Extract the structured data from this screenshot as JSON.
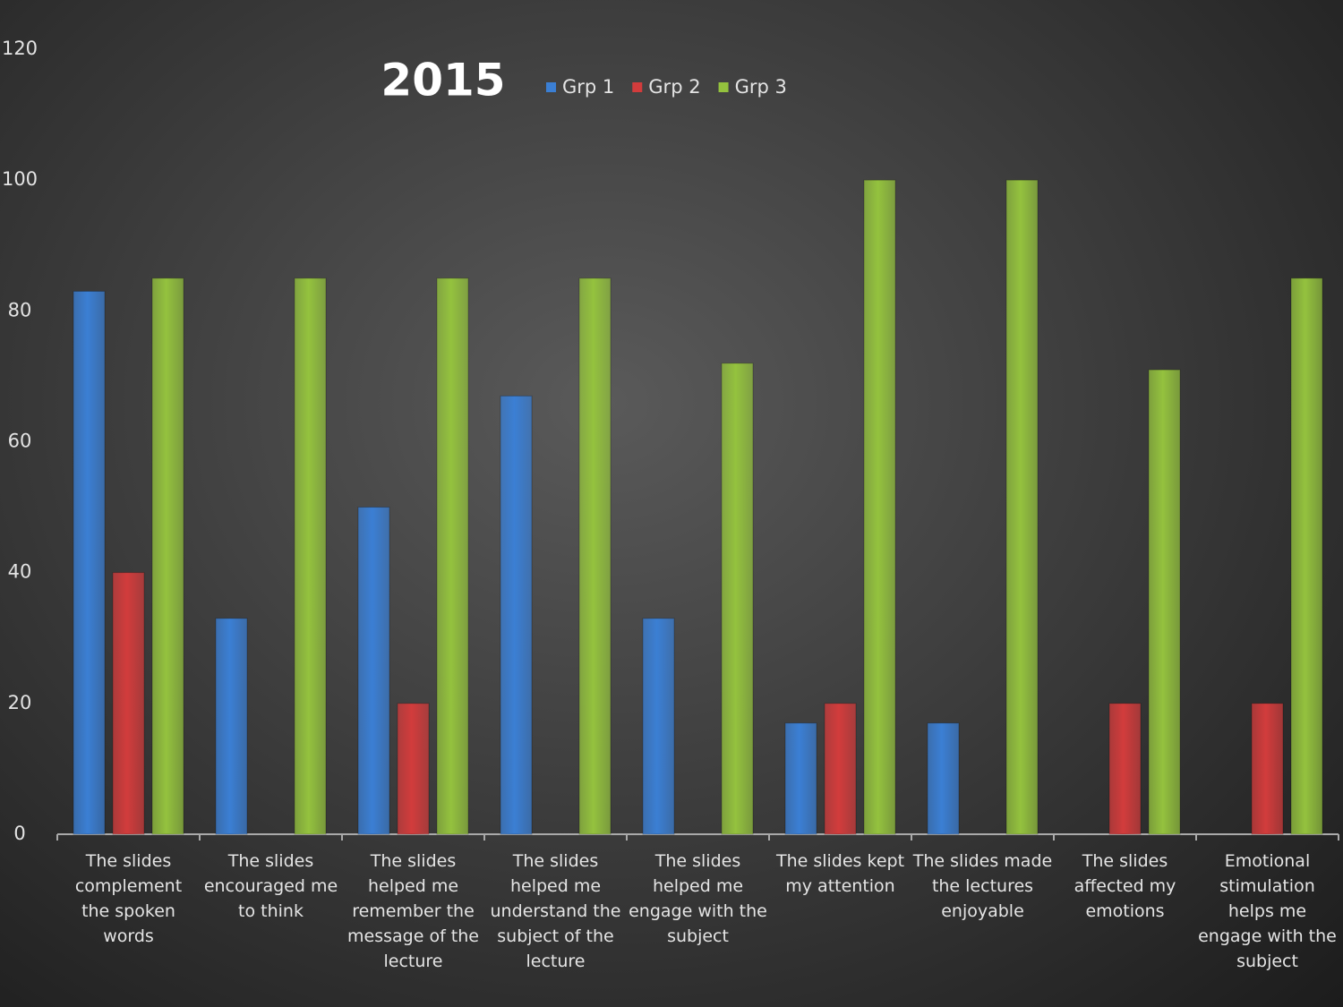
{
  "chart_data": {
    "type": "bar",
    "title": "2015",
    "categories": [
      "The slides complement the spoken words",
      "The slides encouraged me to think",
      "The slides helped me remember the message of the lecture",
      "The slides helped me understand the subject of the lecture",
      "The slides helped me engage with the subject",
      "The slides kept my attention",
      "The slides made the lectures enjoyable",
      "The slides affected my emotions",
      "Emotional stimulation helps me engage with the subject"
    ],
    "series": [
      {
        "name": "Grp 1",
        "color": "#3b7fd4",
        "values": [
          83,
          33,
          50,
          67,
          33,
          17,
          17,
          0,
          0
        ]
      },
      {
        "name": "Grp 2",
        "color": "#d23c3c",
        "values": [
          40,
          0,
          20,
          0,
          0,
          20,
          0,
          20,
          20
        ]
      },
      {
        "name": "Grp 3",
        "color": "#94c23e",
        "values": [
          85,
          85,
          85,
          85,
          72,
          100,
          100,
          71,
          85
        ]
      }
    ],
    "ylim": [
      0,
      120
    ],
    "yticks": [
      0,
      20,
      40,
      60,
      80,
      100,
      120
    ],
    "grid": false
  }
}
